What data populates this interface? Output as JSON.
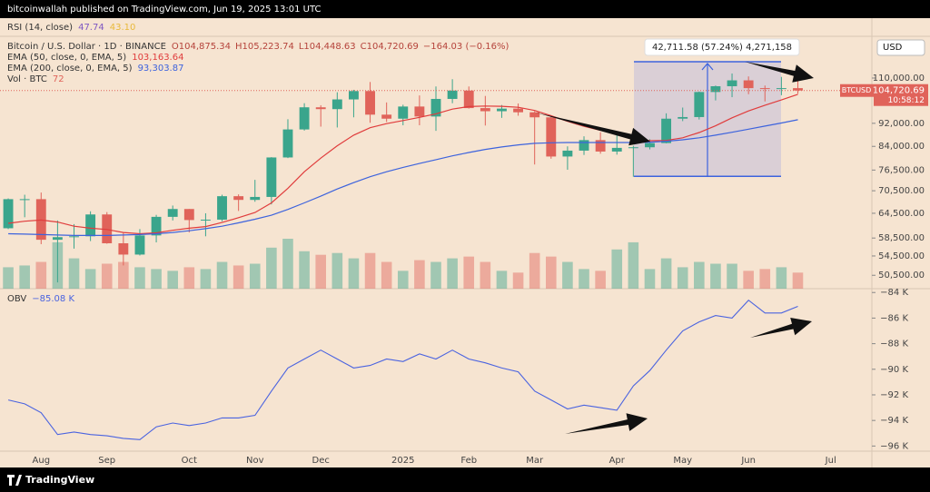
{
  "header": "bitcoinwallah published on TradingView.com, Jun 19, 2025 13:01 UTC",
  "footer": "TradingView",
  "chart_data": {
    "type": "candlestick",
    "title": "Bitcoin / U.S. Dollar · 1D · BINANCE",
    "ohlc_legend": [
      "O104,875.34",
      "H105,223.74",
      "L104,448.63",
      "C104,720.69",
      "−164.03 (−0.16%)"
    ],
    "rsi": {
      "name": "RSI (14, close)",
      "values": [
        "47.74",
        "43.10"
      ],
      "colors": [
        "#7e57c2",
        "#e8b93a"
      ]
    },
    "categories": [
      null,
      null,
      "Aug",
      null,
      null,
      null,
      "Sep",
      null,
      null,
      null,
      null,
      "Oct",
      null,
      null,
      null,
      "Nov",
      null,
      null,
      null,
      "Dec",
      null,
      null,
      null,
      null,
      "2025",
      null,
      null,
      null,
      "Feb",
      null,
      null,
      null,
      "Mar",
      null,
      null,
      null,
      null,
      "Apr",
      null,
      null,
      null,
      "May",
      null,
      null,
      null,
      "Jun",
      null,
      null,
      null,
      null,
      "Jul",
      null,
      null
    ],
    "open": [
      60800,
      68200,
      68200,
      58100,
      58700,
      58900,
      64200,
      57300,
      54800,
      59100,
      63600,
      65600,
      62800,
      62900,
      69000,
      68000,
      68800,
      80400,
      89800,
      98000,
      97300,
      101100,
      104500,
      95200,
      93700,
      98300,
      94500,
      101300,
      104700,
      97700,
      96500,
      97500,
      96100,
      94200,
      80700,
      82600,
      86100,
      82300,
      83500,
      83700,
      85100,
      93700,
      94300,
      104100,
      106500,
      109000,
      105700,
      105600,
      105700,
      null,
      null,
      null,
      null
    ],
    "high": [
      68400,
      69400,
      70000,
      62700,
      61800,
      65000,
      64800,
      59800,
      60600,
      64100,
      66500,
      65600,
      64500,
      69400,
      69500,
      73600,
      80500,
      93500,
      99600,
      98800,
      104000,
      105000,
      108300,
      99900,
      99000,
      102700,
      106400,
      109500,
      106400,
      102500,
      98900,
      99500,
      96500,
      95000,
      84000,
      87400,
      88800,
      88500,
      84200,
      86400,
      95700,
      97900,
      104300,
      106800,
      112000,
      110700,
      106800,
      110500,
      108900,
      null,
      null,
      null,
      null
    ],
    "low": [
      60600,
      63500,
      57100,
      49100,
      56100,
      57800,
      57200,
      52500,
      54600,
      57500,
      62700,
      59800,
      58900,
      62500,
      65100,
      67500,
      66800,
      80200,
      89400,
      90800,
      90500,
      94200,
      92200,
      92500,
      91300,
      91300,
      89300,
      99600,
      97500,
      91200,
      94000,
      94800,
      78200,
      80000,
      76600,
      81200,
      81600,
      81300,
      74500,
      83000,
      85000,
      92800,
      93400,
      100700,
      102000,
      103200,
      100300,
      102800,
      103400,
      null,
      null,
      null,
      null
    ],
    "close": [
      68200,
      68200,
      58100,
      58700,
      58900,
      64200,
      57300,
      54800,
      59100,
      63600,
      65600,
      62800,
      62900,
      69000,
      68000,
      68800,
      80400,
      89800,
      98000,
      97300,
      101100,
      104500,
      95200,
      93700,
      98300,
      94500,
      101300,
      104700,
      97700,
      96500,
      97500,
      96100,
      94200,
      80700,
      82600,
      86100,
      82300,
      83500,
      83700,
      85100,
      93700,
      94300,
      104100,
      106500,
      109000,
      105700,
      105600,
      105700,
      104720.69,
      null,
      null,
      null,
      null
    ],
    "up_color": "#3aa58c",
    "down_color": "#e0635a",
    "overlays": [
      {
        "name": "EMA (50, close, 0, EMA, 5)",
        "legend_value": "103,163.64",
        "color": "#e03c3c",
        "values": [
          62000,
          62500,
          62800,
          62300,
          61300,
          60800,
          60500,
          59800,
          59500,
          59700,
          60300,
          60800,
          61200,
          62200,
          63400,
          64700,
          67200,
          71200,
          76000,
          80200,
          84200,
          87800,
          90400,
          91900,
          93000,
          94200,
          95500,
          97300,
          98300,
          98500,
          98400,
          98000,
          96800,
          94800,
          92700,
          90900,
          89500,
          88200,
          86800,
          85900,
          86000,
          86900,
          88700,
          91100,
          94000,
          96600,
          98800,
          100900,
          103163.64,
          null,
          null,
          null,
          null
        ]
      },
      {
        "name": "EMA (200, close, 0, EMA, 5)",
        "legend_value": "93,303.87",
        "color": "#3d63dd",
        "values": [
          59500,
          59400,
          59300,
          59200,
          59100,
          59100,
          59100,
          59200,
          59300,
          59500,
          59800,
          60200,
          60700,
          61300,
          62100,
          63000,
          64000,
          65500,
          67200,
          69000,
          71000,
          72800,
          74500,
          76000,
          77300,
          78500,
          79700,
          80900,
          82000,
          83000,
          83800,
          84500,
          85000,
          85200,
          85300,
          85300,
          85300,
          85300,
          85300,
          85400,
          85700,
          86200,
          86900,
          87800,
          88800,
          89900,
          91000,
          92100,
          93303.87,
          null,
          null,
          null,
          null
        ]
      }
    ],
    "volume": {
      "name": "Vol · BTC",
      "legend_value": "72",
      "values": [
        120,
        130,
        150,
        260,
        170,
        110,
        140,
        150,
        120,
        110,
        100,
        120,
        110,
        150,
        130,
        140,
        230,
        280,
        210,
        190,
        200,
        170,
        200,
        150,
        100,
        160,
        150,
        170,
        180,
        150,
        100,
        90,
        200,
        180,
        150,
        110,
        100,
        220,
        260,
        110,
        170,
        120,
        150,
        140,
        140,
        100,
        110,
        120,
        90,
        null,
        null,
        null,
        null
      ]
    },
    "log": true,
    "ylim": [
      47900,
      129700
    ],
    "yticks": [
      {
        "value": 50500,
        "label": "50,500.00"
      },
      {
        "value": 54500,
        "label": "54,500.00"
      },
      {
        "value": 58500,
        "label": "58,500.00"
      },
      {
        "value": 64500,
        "label": "64,500.00"
      },
      {
        "value": 70500,
        "label": "70,500.00"
      },
      {
        "value": 76500,
        "label": "76,500.00"
      },
      {
        "value": 84000,
        "label": "84,000.00"
      },
      {
        "value": 92000,
        "label": "92,000.00"
      },
      {
        "value": 110000,
        "label": "110,000.00"
      }
    ],
    "currency": "USD",
    "symbol": "BTCUSD",
    "last_price": {
      "value": 104720.69,
      "label": "104,720.69"
    },
    "countdown": "10:58:12",
    "measure": {
      "label": "42,711.58 (57.24%) 4,271,158",
      "low": 74618,
      "high": 117330
    },
    "obv": {
      "name": "OBV",
      "legend_value": "−85.08 K",
      "color": "#4a63e0",
      "values": [
        -92.4,
        -92.7,
        -93.4,
        -95.1,
        -94.9,
        -95.1,
        -95.2,
        -95.4,
        -95.5,
        -94.5,
        -94.2,
        -94.4,
        -94.2,
        -93.8,
        -93.8,
        -93.6,
        -91.7,
        -89.9,
        -89.2,
        -88.5,
        -89.2,
        -89.9,
        -89.7,
        -89.2,
        -89.4,
        -88.8,
        -89.2,
        -88.5,
        -89.2,
        -89.5,
        -89.9,
        -90.2,
        -91.7,
        -92.4,
        -93.1,
        -92.8,
        -93.0,
        -93.2,
        -91.3,
        -90.1,
        -88.5,
        -87.0,
        -86.3,
        -85.8,
        -86.0,
        -84.6,
        -85.6,
        -85.6,
        -85.08,
        null,
        null,
        null,
        null
      ],
      "ylim": [
        -96.4,
        -83.7
      ],
      "yticks": [
        {
          "value": -84,
          "label": "−84 K"
        },
        {
          "value": -86,
          "label": "−86 K"
        },
        {
          "value": -88,
          "label": "−88 K"
        },
        {
          "value": -90,
          "label": "−90 K"
        },
        {
          "value": -92,
          "label": "−92 K"
        },
        {
          "value": -94,
          "label": "−94 K"
        },
        {
          "value": -96,
          "label": "−96 K"
        }
      ]
    }
  }
}
